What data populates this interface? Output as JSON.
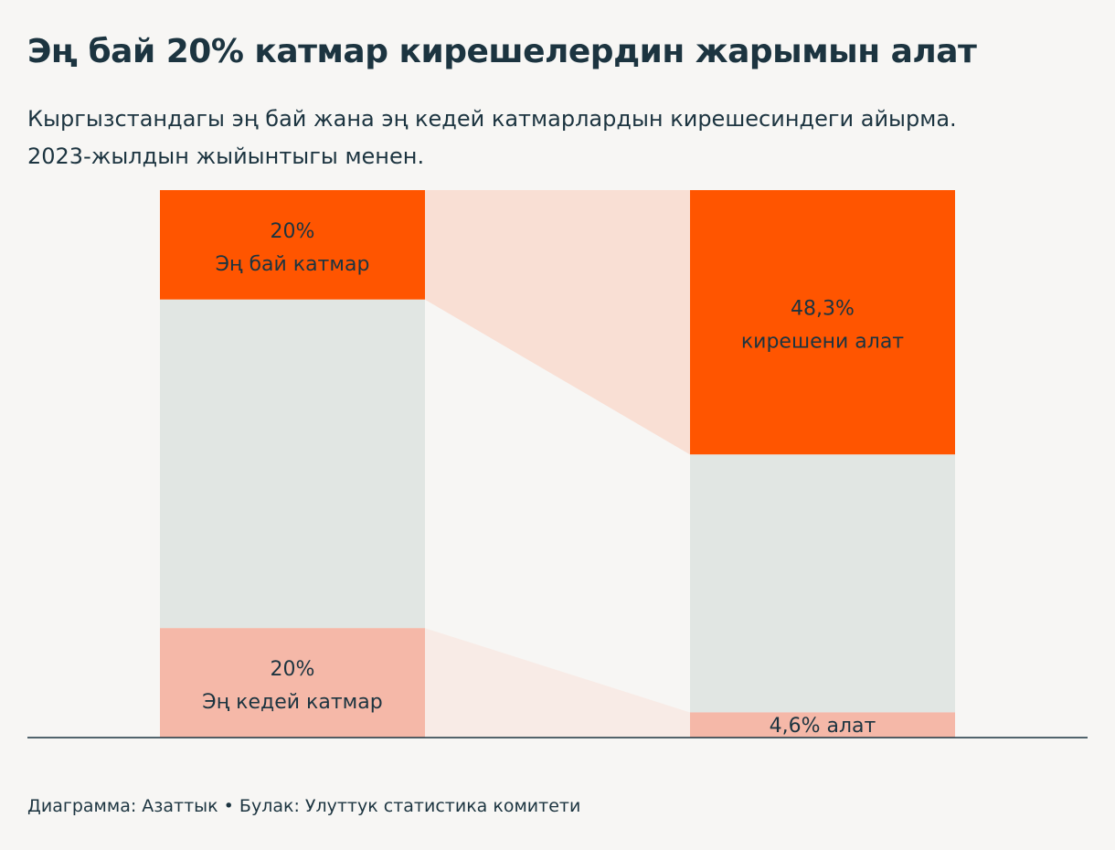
{
  "chart_data": {
    "type": "bar",
    "title": "Эң бай 20% катмар кирешелердин жарымын алат",
    "subtitle": [
      "Кыргызстандагы эң бай жана эң кедей катмарлардын кирешесиндеги айырма.",
      "2023-жылдын жыйынтыгы менен."
    ],
    "ylim": [
      0,
      100
    ],
    "population": {
      "rich": {
        "value": 20,
        "pct_label": "20%",
        "text": "Эң бай катмар"
      },
      "poor": {
        "value": 20,
        "pct_label": "20%",
        "text": "Эң кедей катмар"
      }
    },
    "income": {
      "rich": {
        "value": 48.3,
        "pct_label": "48,3%",
        "text": "кирешени алат"
      },
      "poor": {
        "value": 4.6,
        "label": "4,6% алат"
      }
    },
    "source": "Диаграмма: Азаттык • Булак: Улуттук статистика комитети"
  },
  "colors": {
    "rich": "#ff5500",
    "poor": "#f5b8a8",
    "middle": "#e1e6e3",
    "rich_flow": "#f9dfd4",
    "poor_flow": "#f8ebe6",
    "axis": "#1c3440",
    "text": "#1c3440"
  }
}
